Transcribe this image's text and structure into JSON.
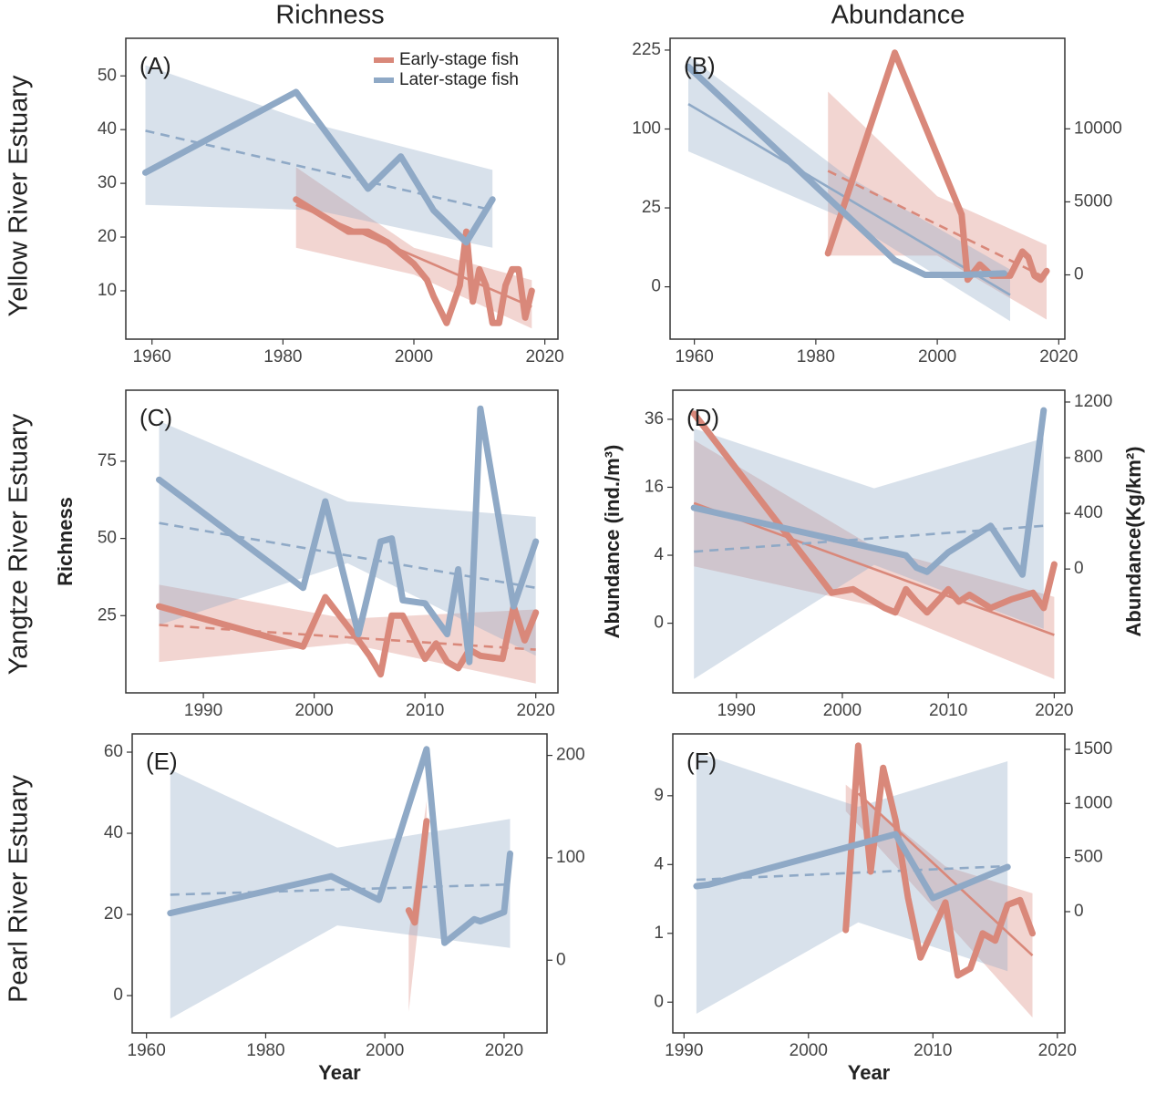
{
  "column_titles": [
    "Richness",
    "Abundance"
  ],
  "row_labels": [
    "Yellow River Estuary",
    "Yangtze River Estuary",
    "Pearl River Estuary"
  ],
  "chart_data": [
    {
      "type": "line",
      "panel_label": "(A)",
      "legend": "top-right",
      "xlim": [
        1956,
        2022
      ],
      "xticks": [
        1960,
        1980,
        2000,
        2020
      ],
      "ylim": [
        1,
        57
      ],
      "yticks": [
        10,
        20,
        30,
        40,
        50
      ],
      "series": [
        {
          "name": "Early-stage fish",
          "color": "#d9887a",
          "x": [
            1982,
            1986,
            1990,
            1993,
            1996,
            2000,
            2002,
            2003,
            2005,
            2007,
            2008,
            2009,
            2010,
            2011,
            2012,
            2013,
            2014,
            2015,
            2016,
            2017,
            2018
          ],
          "values": [
            27,
            24,
            21,
            21,
            19,
            15,
            12,
            9,
            4,
            11,
            21,
            8,
            14,
            11,
            4,
            4,
            11,
            14,
            14,
            5,
            10
          ],
          "fit_x": [
            1982,
            2018
          ],
          "fit_values": [
            26,
            7
          ],
          "fit_dashed": false,
          "band_x": [
            1982,
            2000,
            2018
          ],
          "band_upper": [
            33,
            18,
            12
          ],
          "band_lower": [
            18,
            13,
            3
          ]
        },
        {
          "name": "Later-stage fish",
          "color": "#8fa9c6",
          "x": [
            1959,
            1982,
            1993,
            1998,
            2003,
            2008,
            2012
          ],
          "values": [
            32,
            47,
            29,
            35,
            25,
            19,
            27
          ],
          "fit_x": [
            1959,
            2012
          ],
          "fit_values": [
            39.8,
            25
          ],
          "fit_dashed": true,
          "band_x": [
            1959,
            1985,
            2012
          ],
          "band_upper": [
            52,
            41,
            32.5
          ],
          "band_lower": [
            26,
            25,
            18
          ]
        }
      ]
    },
    {
      "type": "line",
      "panel_label": "(B)",
      "yscale": "sqrt",
      "xlim": [
        1956,
        2021
      ],
      "xticks": [
        1960,
        1980,
        2000,
        2020
      ],
      "ylim": [
        -11,
        248
      ],
      "yticks": [
        0,
        25,
        100,
        225
      ],
      "y2lim": [
        -4400,
        16200
      ],
      "y2ticks": [
        0,
        5000,
        10000
      ],
      "series": [
        {
          "color": "#d9887a",
          "x": [
            1982,
            1993,
            2004,
            2005,
            2007,
            2009,
            2012,
            2014,
            2015,
            2016,
            2017,
            2018
          ],
          "values": [
            4.5,
            220,
            21,
            0.2,
            2,
            0.5,
            0.5,
            5,
            3.5,
            0.5,
            0.2,
            1
          ],
          "fit_x": [
            1982,
            2018
          ],
          "fit_values": [
            54,
            0.3
          ],
          "fit_dashed": true,
          "band_x": [
            1982,
            2000,
            2018
          ],
          "band_upper": [
            153,
            33,
            7
          ],
          "band_lower": [
            3.9,
            3.9,
            -4.3
          ]
        },
        {
          "color": "#8fa9c6",
          "axis": "y2",
          "x": [
            1959,
            1993,
            1998,
            2004,
            2011
          ],
          "values": [
            14250,
            1000,
            0,
            0,
            100
          ],
          "fit_x": [
            1959,
            2012
          ],
          "fit_values": [
            11700,
            -1370
          ],
          "fit_dashed": false,
          "band_x": [
            1959,
            1985,
            2012
          ],
          "band_upper": [
            15000,
            6800,
            370
          ],
          "band_lower": [
            8460,
            3800,
            -3170
          ]
        }
      ]
    },
    {
      "type": "line",
      "panel_label": "(C)",
      "ylabel": "Richness",
      "xlim": [
        1983,
        2022
      ],
      "xticks": [
        1990,
        2000,
        2010,
        2020
      ],
      "ylim": [
        0,
        98
      ],
      "yticks": [
        25,
        50,
        75
      ],
      "series": [
        {
          "color": "#d9887a",
          "x": [
            1986,
            1999,
            2001,
            2004,
            2005,
            2006,
            2007,
            2008,
            2010,
            2011,
            2012,
            2013,
            2014,
            2015,
            2017,
            2018,
            2019,
            2020
          ],
          "values": [
            28,
            15,
            31,
            17,
            12,
            6,
            25,
            25,
            11,
            16,
            10,
            8,
            14,
            12,
            11,
            28,
            17,
            26
          ],
          "fit_x": [
            1986,
            2020
          ],
          "fit_values": [
            22,
            14
          ],
          "fit_dashed": true,
          "band_x": [
            1986,
            2003,
            2020
          ],
          "band_upper": [
            35,
            24,
            27
          ],
          "band_lower": [
            10,
            16,
            3
          ]
        },
        {
          "color": "#8fa9c6",
          "x": [
            1986,
            1999,
            2001,
            2004,
            2006,
            2007,
            2008,
            2010,
            2012,
            2013,
            2014,
            2015,
            2018,
            2020
          ],
          "values": [
            69,
            34,
            62,
            19,
            49,
            50,
            30,
            29,
            19,
            40,
            10,
            92,
            28,
            49
          ],
          "fit_x": [
            1986,
            2020
          ],
          "fit_values": [
            55,
            34
          ],
          "fit_dashed": true,
          "band_x": [
            1986,
            2003,
            2020
          ],
          "band_upper": [
            88,
            62,
            57
          ],
          "band_lower": [
            22,
            42,
            12
          ]
        }
      ]
    },
    {
      "type": "line",
      "panel_label": "(D)",
      "yscale": "sqrt",
      "ylabel": "Abundance (ind./m³)",
      "y2label": "Abundance(Kg/km²)",
      "xlim": [
        1984,
        2021
      ],
      "xticks": [
        1990,
        2000,
        2010,
        2020
      ],
      "ylim": [
        -4.2,
        47
      ],
      "yticks": [
        0,
        4,
        16,
        36
      ],
      "y2lim": [
        -890,
        1285
      ],
      "y2ticks": [
        0,
        400,
        800,
        1200
      ],
      "series": [
        {
          "color": "#d9887a",
          "x": [
            1986,
            1999,
            2001,
            2004,
            2005,
            2006,
            2007,
            2008,
            2010,
            2011,
            2012,
            2014,
            2016,
            2018,
            2019,
            2020
          ],
          "values": [
            38,
            0.8,
            1,
            0.2,
            0.1,
            1,
            0.4,
            0.1,
            1,
            0.4,
            0.7,
            0.2,
            0.5,
            0.8,
            0.2,
            3
          ],
          "fit_x": [
            1986,
            2020
          ],
          "fit_values": [
            12.5,
            -0.12
          ],
          "fit_dashed": false,
          "band_x": [
            1986,
            2003,
            2020
          ],
          "band_upper": [
            29,
            5,
            0.6
          ],
          "band_lower": [
            2.8,
            0.26,
            -2.7
          ]
        },
        {
          "color": "#8fa9c6",
          "axis": "y2",
          "x": [
            1986,
            2006,
            2007,
            2008,
            2010,
            2014,
            2017,
            2019
          ],
          "values": [
            440,
            98,
            10,
            -20,
            120,
            310,
            -40,
            1140
          ],
          "fit_x": [
            1986,
            2019
          ],
          "fit_values": [
            125,
            310
          ],
          "fit_dashed": true,
          "band_x": [
            1986,
            2003,
            2019
          ],
          "band_upper": [
            1010,
            580,
            940
          ],
          "band_lower": [
            -790,
            30,
            -430
          ]
        }
      ]
    },
    {
      "type": "line",
      "panel_label": "(E)",
      "xlabel": "Year",
      "xlim": [
        1957.6,
        2027.2
      ],
      "xticks": [
        1960,
        1980,
        2000,
        2020
      ],
      "ylim": [
        -9.2,
        64.5
      ],
      "yticks": [
        0,
        20,
        40,
        60
      ],
      "y2lim": [
        -71,
        221
      ],
      "y2ticks": [
        0,
        100,
        200
      ],
      "series": [
        {
          "color": "#d9887a",
          "x": [
            2004,
            2005,
            2007
          ],
          "values": [
            21,
            18,
            43
          ],
          "band_x": [
            2004,
            2007
          ],
          "band_upper": [
            15,
            48
          ],
          "band_lower": [
            -4,
            36
          ]
        },
        {
          "color": "#8fa9c6",
          "axis": "y2",
          "x": [
            1964,
            1991,
            1999,
            2007,
            2010,
            2015,
            2016,
            2020,
            2021
          ],
          "values": [
            46,
            82,
            59,
            206,
            17,
            40,
            38,
            47,
            104
          ],
          "fit_x": [
            1964,
            2021
          ],
          "fit_values": [
            64,
            74
          ],
          "fit_dashed": true,
          "band_x": [
            1964,
            1992,
            2021
          ],
          "band_upper": [
            186,
            110,
            138
          ],
          "band_lower": [
            -57,
            34,
            12
          ]
        }
      ]
    },
    {
      "type": "line",
      "panel_label": "(F)",
      "yscale": "sqrt",
      "xlabel": "Year",
      "xlim": [
        1989.1,
        2020.6
      ],
      "xticks": [
        1990,
        2000,
        2010,
        2020
      ],
      "ylim": [
        -0.2,
        15.2
      ],
      "yticks": [
        0,
        1,
        4,
        9
      ],
      "y2lim": [
        -1121,
        1643
      ],
      "y2ticks": [
        0,
        500,
        1000,
        1500
      ],
      "series": [
        {
          "color": "#d9887a",
          "x": [
            2003,
            2004,
            2005,
            2006,
            2007,
            2008,
            2009,
            2011,
            2012,
            2013,
            2014,
            2015,
            2016,
            2017,
            2018
          ],
          "values": [
            1.1,
            13.9,
            3.6,
            11.6,
            7,
            2.3,
            0.42,
            2.1,
            0.15,
            0.24,
            1,
            0.8,
            2,
            2.2,
            1
          ],
          "fit_x": [
            2004,
            2018
          ],
          "fit_values": [
            9.2,
            0.46
          ],
          "fit_dashed": false,
          "band_x": [
            2003,
            2011,
            2018
          ],
          "band_upper": [
            10,
            3.9,
            2.5
          ],
          "band_lower": [
            7.7,
            1.4,
            -0.05
          ]
        },
        {
          "color": "#8fa9c6",
          "axis": "y2",
          "x": [
            1991,
            1992,
            2007,
            2010,
            2016
          ],
          "values": [
            236,
            250,
            716,
            126,
            413
          ],
          "fit_x": [
            1991,
            2016
          ],
          "fit_values": [
            295,
            421
          ],
          "fit_dashed": true,
          "band_x": [
            1991,
            2004,
            2016
          ],
          "band_upper": [
            1474,
            970,
            1390
          ],
          "band_lower": [
            -944,
            -100,
            -550
          ]
        }
      ]
    }
  ]
}
